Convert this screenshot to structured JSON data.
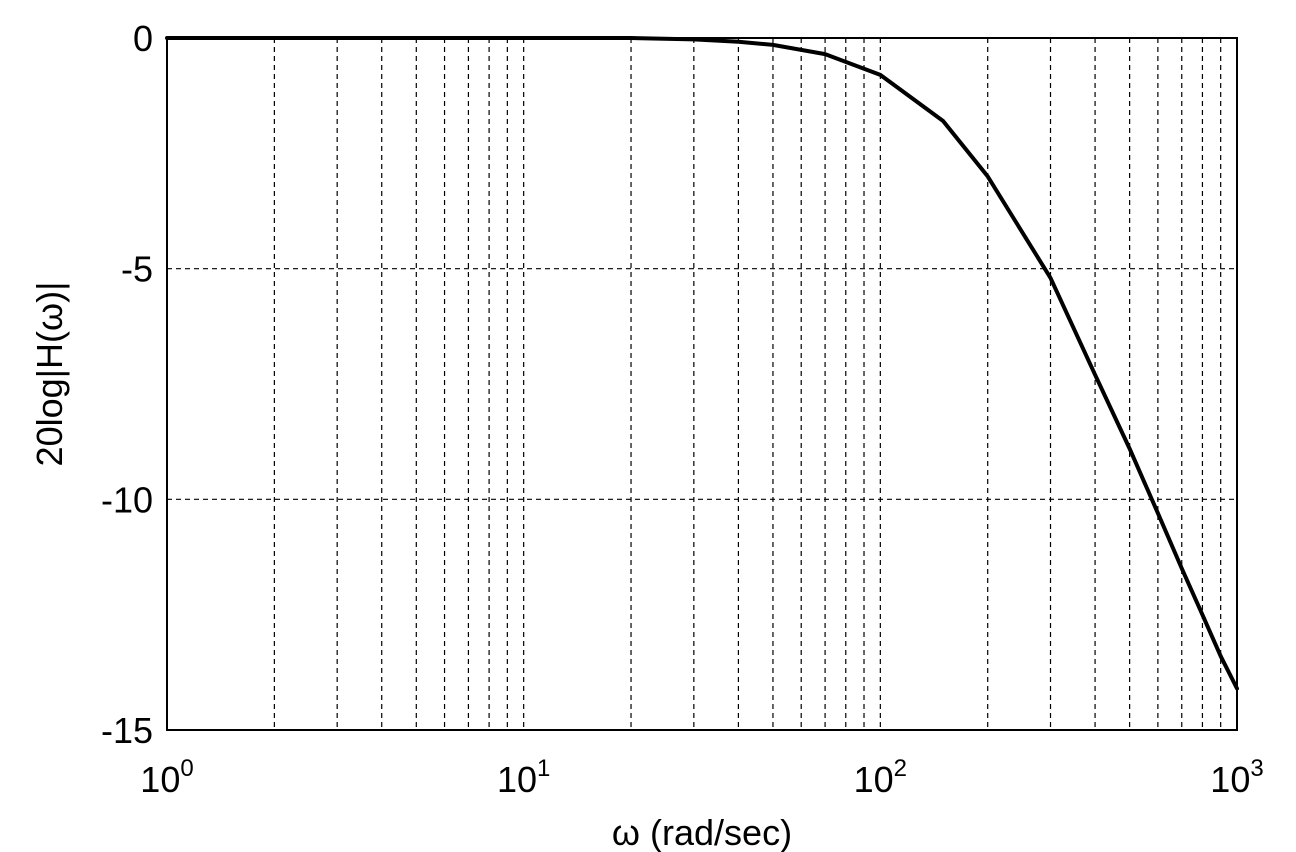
{
  "chart_data": {
    "type": "line",
    "title": "",
    "xlabel": "ω (rad/sec)",
    "ylabel": "20log|H(ω)|",
    "x_scale": "log",
    "xlim": [
      1,
      1000
    ],
    "ylim": [
      -15,
      0
    ],
    "grid": true,
    "x_ticks": [
      {
        "base": "10",
        "exp": "0",
        "value": 1
      },
      {
        "base": "10",
        "exp": "1",
        "value": 10
      },
      {
        "base": "10",
        "exp": "2",
        "value": 100
      },
      {
        "base": "10",
        "exp": "3",
        "value": 1000
      }
    ],
    "y_ticks": [
      {
        "label": "0",
        "value": 0
      },
      {
        "label": "-5",
        "value": -5
      },
      {
        "label": "-10",
        "value": -10
      },
      {
        "label": "-15",
        "value": -15
      }
    ],
    "series": [
      {
        "color": "#000000",
        "x": [
          1,
          2,
          5,
          10,
          20,
          30,
          40,
          50,
          70,
          100,
          150,
          200,
          300,
          400,
          500,
          600,
          700,
          800,
          900,
          1000
        ],
        "y": [
          0,
          0,
          0,
          0,
          0,
          -0.03,
          -0.08,
          -0.15,
          -0.35,
          -0.8,
          -1.8,
          -3.0,
          -5.2,
          -7.3,
          -8.9,
          -10.3,
          -11.5,
          -12.5,
          -13.4,
          -14.1
        ]
      }
    ]
  }
}
